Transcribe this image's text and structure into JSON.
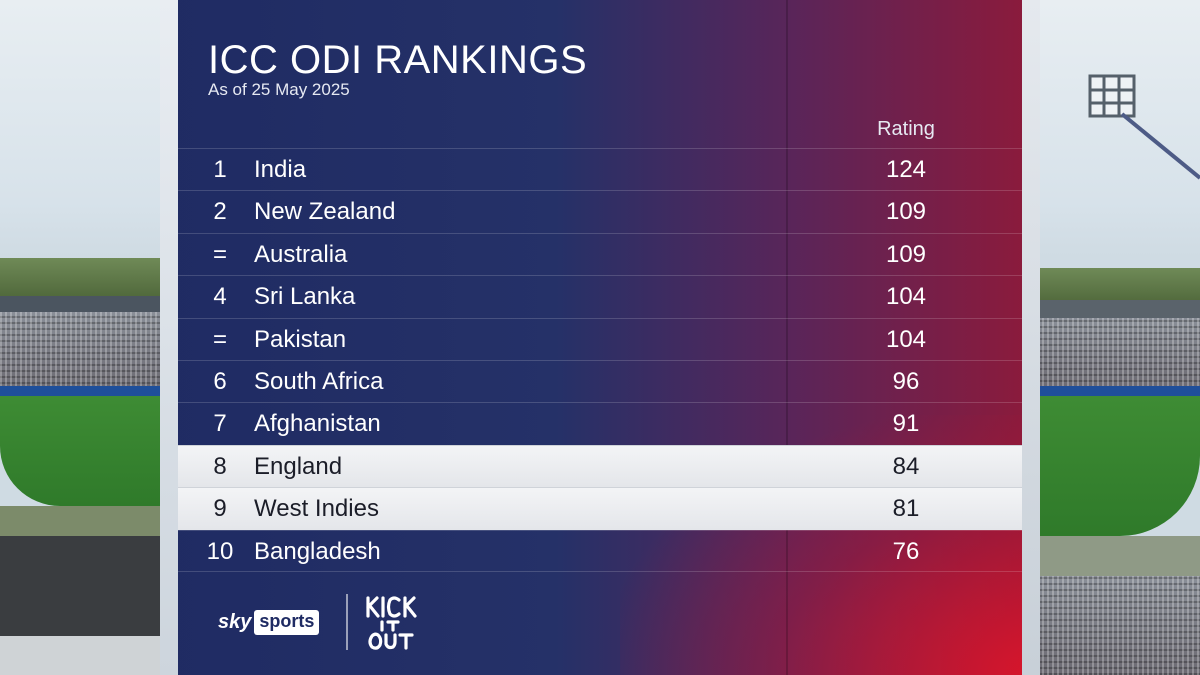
{
  "graphic": {
    "title": "ICC ODI RANKINGS",
    "subtitle": "As of 25 May 2025",
    "column_header": "Rating",
    "rows": [
      {
        "rank": "1",
        "team": "India",
        "rating": "124",
        "highlighted": false
      },
      {
        "rank": "2",
        "team": "New Zealand",
        "rating": "109",
        "highlighted": false
      },
      {
        "rank": "=",
        "team": "Australia",
        "rating": "109",
        "highlighted": false
      },
      {
        "rank": "4",
        "team": "Sri Lanka",
        "rating": "104",
        "highlighted": false
      },
      {
        "rank": "=",
        "team": "Pakistan",
        "rating": "104",
        "highlighted": false
      },
      {
        "rank": "6",
        "team": "South Africa",
        "rating": "96",
        "highlighted": false
      },
      {
        "rank": "7",
        "team": "Afghanistan",
        "rating": "91",
        "highlighted": false
      },
      {
        "rank": "8",
        "team": "England",
        "rating": "84",
        "highlighted": true
      },
      {
        "rank": "9",
        "team": "West Indies",
        "rating": "81",
        "highlighted": true
      },
      {
        "rank": "10",
        "team": "Bangladesh",
        "rating": "76",
        "highlighted": false
      }
    ]
  },
  "branding": {
    "broadcaster_sky": "sky",
    "broadcaster_sports": "sports",
    "campaign_logo": "KICK IT OUT"
  },
  "colors": {
    "panel_blue": "#1f2b63",
    "panel_red": "#8e1a3a",
    "highlight_row": "#f3f4f6"
  }
}
